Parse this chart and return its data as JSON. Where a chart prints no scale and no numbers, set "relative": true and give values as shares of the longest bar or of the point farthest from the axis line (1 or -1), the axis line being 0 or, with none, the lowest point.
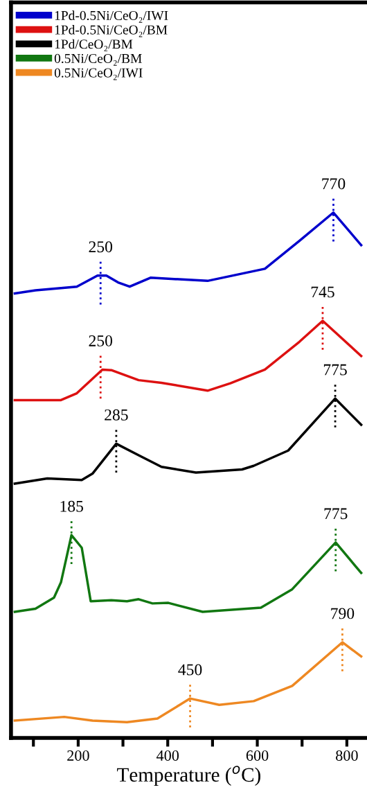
{
  "chart_data": {
    "type": "line",
    "relative": true,
    "xlabel": "Temperature ($^{o}$C)",
    "xlim": [
      50,
      845
    ],
    "xticks": [
      {
        "value": 100,
        "label": null
      },
      200,
      {
        "value": 300,
        "label": null
      },
      400,
      {
        "value": 500,
        "label": null
      },
      600,
      {
        "value": 700,
        "label": null
      },
      800
    ],
    "tick_labels": "x",
    "grid": false,
    "legend": "top left",
    "line_style": "solid",
    "marker": "none",
    "series": [
      {
        "name": "1Pd-0.5Ni/CeO₂/IWI",
        "color": "#0000cc",
        "x": [
          58.5,
          104.6,
          196.9,
          243,
          263,
          289,
          315,
          361.5,
          489,
          617,
          694,
          770,
          832
        ],
        "values": [
          0.846,
          0.852,
          0.859,
          0.88,
          0.88,
          0.867,
          0.859,
          0.876,
          0.87,
          0.893,
          0.946,
          1.0,
          0.938
        ]
      },
      {
        "name": "1Pd-0.5Ni/CeO₂/BM",
        "color": "#dd1111",
        "x": [
          58.5,
          161.5,
          197,
          254,
          274,
          335,
          386,
          489,
          540,
          617,
          694,
          746,
          832
        ],
        "values": [
          0.643,
          0.643,
          0.656,
          0.701,
          0.7,
          0.681,
          0.676,
          0.661,
          0.675,
          0.701,
          0.754,
          0.794,
          0.727
        ]
      },
      {
        "name": "1Pd/CeO₂/BM",
        "color": "#000000",
        "x": [
          58.5,
          131,
          208,
          232,
          285,
          335,
          386,
          463,
          566,
          592,
          669,
          774,
          832
        ],
        "values": [
          0.484,
          0.494,
          0.491,
          0.503,
          0.56,
          0.538,
          0.516,
          0.505,
          0.511,
          0.518,
          0.547,
          0.646,
          0.596
        ]
      },
      {
        "name": "0.5Ni/CeO₂/BM",
        "color": "#117711",
        "x": [
          58.5,
          104.6,
          146,
          161.5,
          185,
          208,
          228,
          274,
          309,
          335,
          366,
          401.5,
          478,
          608,
          678,
          775,
          832
        ],
        "values": [
          0.24,
          0.246,
          0.267,
          0.296,
          0.386,
          0.362,
          0.26,
          0.262,
          0.26,
          0.264,
          0.256,
          0.257,
          0.24,
          0.248,
          0.283,
          0.372,
          0.314
        ]
      },
      {
        "name": "0.5Ni/CeO₂/IWI",
        "color": "#ee8822",
        "x": [
          58.5,
          169,
          232,
          309,
          377,
          450,
          515,
          592,
          678,
          790,
          832
        ],
        "values": [
          0.033,
          0.04,
          0.033,
          0.03,
          0.037,
          0.075,
          0.063,
          0.07,
          0.099,
          0.182,
          0.155
        ]
      }
    ],
    "annotations": [
      {
        "text": "250",
        "x": 250,
        "y": 0.88
      },
      {
        "text": "770",
        "x": 770,
        "y": 1.0
      },
      {
        "text": "250",
        "x": 250,
        "y": 0.701
      },
      {
        "text": "745",
        "x": 746,
        "y": 0.794
      },
      {
        "text": "285",
        "x": 285,
        "y": 0.56
      },
      {
        "text": "775",
        "x": 774,
        "y": 0.646
      },
      {
        "text": "185",
        "x": 185,
        "y": 0.386
      },
      {
        "text": "775",
        "x": 775,
        "y": 0.372
      },
      {
        "text": "450",
        "x": 450,
        "y": 0.075
      },
      {
        "text": "790",
        "x": 790,
        "y": 0.182
      }
    ]
  }
}
